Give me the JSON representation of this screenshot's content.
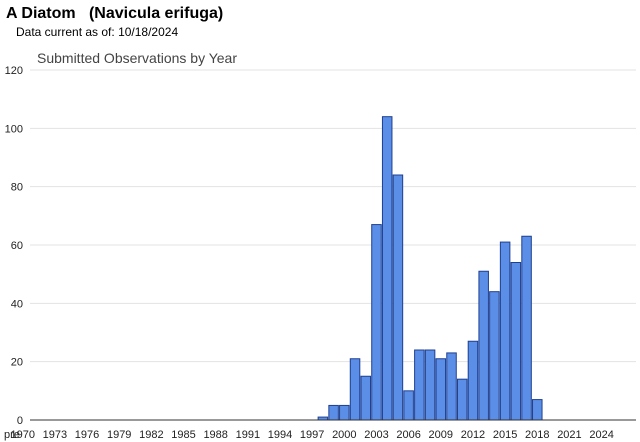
{
  "header": {
    "species_title": "A Diatom   (Navicula erifuga)",
    "data_current_label": "Data current as of:",
    "data_current_date": "10/18/2024"
  },
  "colors": {
    "bar_fill": "#5b8ee6",
    "bar_stroke": "#1f3f8f",
    "grid": "#e3e3e3",
    "axis": "#333333",
    "text": "#222222"
  },
  "chart_data": {
    "type": "bar",
    "title": "Submitted Observations by Year",
    "xlabel": "",
    "ylabel": "",
    "ylim": [
      0,
      120
    ],
    "yticks": [
      0,
      20,
      40,
      60,
      80,
      100,
      120
    ],
    "grid": true,
    "legend": "none",
    "x_tick_labels": [
      "pre",
      "1970",
      "1973",
      "1976",
      "1979",
      "1982",
      "1985",
      "1988",
      "1991",
      "1994",
      "1997",
      "2000",
      "2003",
      "2006",
      "2009",
      "2012",
      "2015",
      "2018",
      "2021",
      "2024"
    ],
    "categories": [
      "pre",
      "1970",
      "1971",
      "1972",
      "1973",
      "1974",
      "1975",
      "1976",
      "1977",
      "1978",
      "1979",
      "1980",
      "1981",
      "1982",
      "1983",
      "1984",
      "1985",
      "1986",
      "1987",
      "1988",
      "1989",
      "1990",
      "1991",
      "1992",
      "1993",
      "1994",
      "1995",
      "1996",
      "1997",
      "1998",
      "1999",
      "2000",
      "2001",
      "2002",
      "2003",
      "2004",
      "2005",
      "2006",
      "2007",
      "2008",
      "2009",
      "2010",
      "2011",
      "2012",
      "2013",
      "2014",
      "2015",
      "2016",
      "2017",
      "2018",
      "2019",
      "2020",
      "2021",
      "2022",
      "2023",
      "2024"
    ],
    "values": [
      0,
      0,
      0,
      0,
      0,
      0,
      0,
      0,
      0,
      0,
      0,
      0,
      0,
      0,
      0,
      0,
      0,
      0,
      0,
      0,
      0,
      0,
      0,
      0,
      0,
      0,
      0,
      0,
      0,
      1,
      5,
      5,
      21,
      15,
      67,
      104,
      84,
      10,
      24,
      24,
      21,
      23,
      14,
      27,
      51,
      44,
      61,
      54,
      63,
      7,
      0,
      0,
      0,
      0,
      0,
      0
    ]
  }
}
